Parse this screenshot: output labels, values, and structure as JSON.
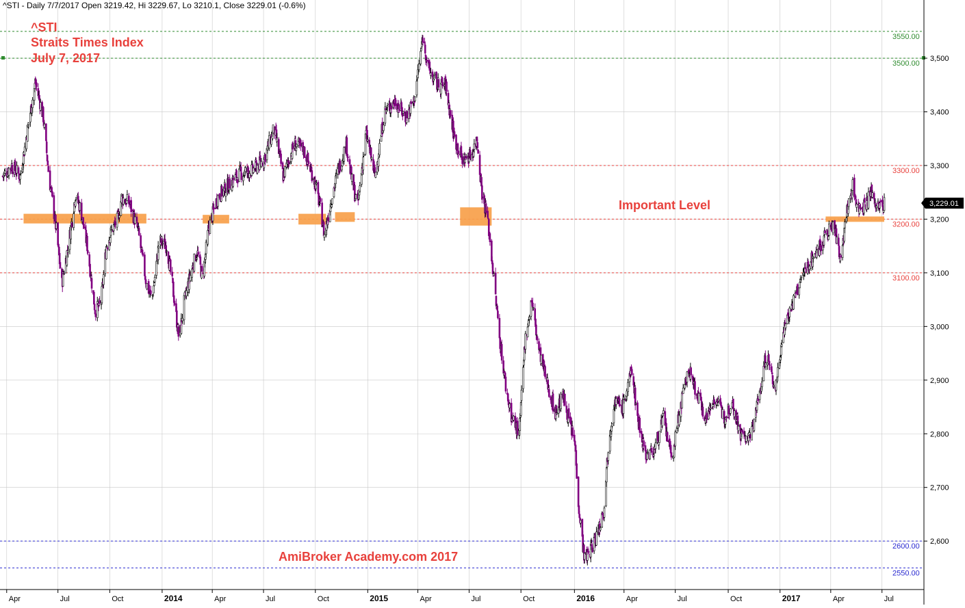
{
  "header": "^STI - Daily 7/7/2017 Open 3219.42, Hi 3229.67, Lo 3210.1, Close 3229.01 (-0.6%)",
  "title_lines": [
    "^STI",
    "Straits Times Index",
    "July 7, 2017"
  ],
  "annotation": "Important Level",
  "watermark": "AmiBroker Academy.com 2017",
  "last_price_label": "3,229.01",
  "colors": {
    "up_candle": "#000000",
    "down_candle": "#800080",
    "zone": "#f7a04a",
    "level_red": "#e8413c",
    "level_green": "#2e8b2e",
    "level_blue": "#2a2ad0",
    "grid": "#c8c8c8",
    "title": "#e8413c"
  },
  "chart_data": {
    "type": "candlestick",
    "y_axis": {
      "min": 2525,
      "max": 3560,
      "ticks": [
        2600,
        2700,
        2800,
        2900,
        3000,
        3100,
        3200,
        3300,
        3400,
        3500
      ],
      "tick_labels": [
        "2,600",
        "2,700",
        "2,800",
        "2,900",
        "3,000",
        "3,100",
        "3,200",
        "3,300",
        "3,400",
        "3,500"
      ]
    },
    "x_axis": {
      "start": "2013-03-25",
      "end": "2017-07-07",
      "ticks": [
        {
          "date": "2013-04-01",
          "label": "Apr",
          "bold": false
        },
        {
          "date": "2013-07-01",
          "label": "Jul",
          "bold": false
        },
        {
          "date": "2013-10-01",
          "label": "Oct",
          "bold": false
        },
        {
          "date": "2014-01-02",
          "label": "2014",
          "bold": true
        },
        {
          "date": "2014-04-01",
          "label": "Apr",
          "bold": false
        },
        {
          "date": "2014-07-01",
          "label": "Jul",
          "bold": false
        },
        {
          "date": "2014-10-01",
          "label": "Oct",
          "bold": false
        },
        {
          "date": "2015-01-02",
          "label": "2015",
          "bold": true
        },
        {
          "date": "2015-04-01",
          "label": "Apr",
          "bold": false
        },
        {
          "date": "2015-07-01",
          "label": "Jul",
          "bold": false
        },
        {
          "date": "2015-10-01",
          "label": "Oct",
          "bold": false
        },
        {
          "date": "2016-01-04",
          "label": "2016",
          "bold": true
        },
        {
          "date": "2016-04-01",
          "label": "Apr",
          "bold": false
        },
        {
          "date": "2016-07-01",
          "label": "Jul",
          "bold": false
        },
        {
          "date": "2016-10-03",
          "label": "Oct",
          "bold": false
        },
        {
          "date": "2017-01-03",
          "label": "2017",
          "bold": true
        },
        {
          "date": "2017-04-03",
          "label": "Apr",
          "bold": false
        },
        {
          "date": "2017-07-03",
          "label": "Jul",
          "bold": false
        }
      ]
    },
    "levels": [
      {
        "value": 3550,
        "label": "3550.00",
        "color": "#2e8b2e"
      },
      {
        "value": 3500,
        "label": "3500.00",
        "color": "#2e8b2e"
      },
      {
        "value": 3300,
        "label": "3300.00",
        "color": "#e8413c"
      },
      {
        "value": 3200,
        "label": "3200.00",
        "color": "#e8413c"
      },
      {
        "value": 3100,
        "label": "3100.00",
        "color": "#e8413c"
      },
      {
        "value": 2600,
        "label": "2600.00",
        "color": "#2a2ad0"
      },
      {
        "value": 2550,
        "label": "2550.00",
        "color": "#2a2ad0"
      }
    ],
    "zones": [
      {
        "start": "2013-05-01",
        "end": "2013-12-05",
        "low": 3192,
        "high": 3210
      },
      {
        "start": "2014-03-15",
        "end": "2014-05-01",
        "low": 3192,
        "high": 3208
      },
      {
        "start": "2014-09-01",
        "end": "2014-10-20",
        "low": 3190,
        "high": 3210
      },
      {
        "start": "2014-11-05",
        "end": "2014-12-10",
        "low": 3195,
        "high": 3213
      },
      {
        "start": "2015-06-15",
        "end": "2015-08-10",
        "low": 3188,
        "high": 3222
      },
      {
        "start": "2017-03-25",
        "end": "2017-07-07",
        "low": 3195,
        "high": 3205
      }
    ],
    "price_path": [
      [
        "2013-03-25",
        3280
      ],
      [
        "2013-04-10",
        3300
      ],
      [
        "2013-04-25",
        3280
      ],
      [
        "2013-05-10",
        3380
      ],
      [
        "2013-05-22",
        3455
      ],
      [
        "2013-06-05",
        3390
      ],
      [
        "2013-06-15",
        3280
      ],
      [
        "2013-06-28",
        3180
      ],
      [
        "2013-07-08",
        3080
      ],
      [
        "2013-07-22",
        3170
      ],
      [
        "2013-08-01",
        3245
      ],
      [
        "2013-08-10",
        3220
      ],
      [
        "2013-08-22",
        3150
      ],
      [
        "2013-09-05",
        3030
      ],
      [
        "2013-09-15",
        3040
      ],
      [
        "2013-09-25",
        3150
      ],
      [
        "2013-10-05",
        3180
      ],
      [
        "2013-10-15",
        3200
      ],
      [
        "2013-10-22",
        3240
      ],
      [
        "2013-11-05",
        3230
      ],
      [
        "2013-11-20",
        3180
      ],
      [
        "2013-12-05",
        3080
      ],
      [
        "2013-12-15",
        3050
      ],
      [
        "2013-12-28",
        3160
      ],
      [
        "2014-01-10",
        3150
      ],
      [
        "2014-01-20",
        3080
      ],
      [
        "2014-02-01",
        2975
      ],
      [
        "2014-02-10",
        3045
      ],
      [
        "2014-02-22",
        3100
      ],
      [
        "2014-03-05",
        3140
      ],
      [
        "2014-03-15",
        3090
      ],
      [
        "2014-03-25",
        3180
      ],
      [
        "2014-04-10",
        3240
      ],
      [
        "2014-05-01",
        3265
      ],
      [
        "2014-05-20",
        3285
      ],
      [
        "2014-06-10",
        3290
      ],
      [
        "2014-07-01",
        3310
      ],
      [
        "2014-07-20",
        3370
      ],
      [
        "2014-08-05",
        3280
      ],
      [
        "2014-08-25",
        3340
      ],
      [
        "2014-09-10",
        3330
      ],
      [
        "2014-09-30",
        3270
      ],
      [
        "2014-10-10",
        3220
      ],
      [
        "2014-10-17",
        3170
      ],
      [
        "2014-10-30",
        3240
      ],
      [
        "2014-11-10",
        3290
      ],
      [
        "2014-11-25",
        3340
      ],
      [
        "2014-12-05",
        3270
      ],
      [
        "2014-12-15",
        3225
      ],
      [
        "2014-12-30",
        3360
      ],
      [
        "2015-01-15",
        3280
      ],
      [
        "2015-02-01",
        3400
      ],
      [
        "2015-02-20",
        3420
      ],
      [
        "2015-03-10",
        3390
      ],
      [
        "2015-03-25",
        3420
      ],
      [
        "2015-04-10",
        3540
      ],
      [
        "2015-04-20",
        3480
      ],
      [
        "2015-05-05",
        3450
      ],
      [
        "2015-05-20",
        3450
      ],
      [
        "2015-06-05",
        3350
      ],
      [
        "2015-06-20",
        3310
      ],
      [
        "2015-07-05",
        3320
      ],
      [
        "2015-07-15",
        3350
      ],
      [
        "2015-07-24",
        3250
      ],
      [
        "2015-08-03",
        3200
      ],
      [
        "2015-08-10",
        3130
      ],
      [
        "2015-08-24",
        2980
      ],
      [
        "2015-09-05",
        2880
      ],
      [
        "2015-09-15",
        2830
      ],
      [
        "2015-09-28",
        2800
      ],
      [
        "2015-10-08",
        2970
      ],
      [
        "2015-10-20",
        3050
      ],
      [
        "2015-11-01",
        2960
      ],
      [
        "2015-11-15",
        2900
      ],
      [
        "2015-12-01",
        2840
      ],
      [
        "2015-12-15",
        2870
      ],
      [
        "2016-01-05",
        2780
      ],
      [
        "2016-01-12",
        2660
      ],
      [
        "2016-01-22",
        2565
      ],
      [
        "2016-02-05",
        2590
      ],
      [
        "2016-02-15",
        2620
      ],
      [
        "2016-02-25",
        2660
      ],
      [
        "2016-03-05",
        2790
      ],
      [
        "2016-03-15",
        2860
      ],
      [
        "2016-03-30",
        2850
      ],
      [
        "2016-04-15",
        2920
      ],
      [
        "2016-04-25",
        2830
      ],
      [
        "2016-05-10",
        2760
      ],
      [
        "2016-05-25",
        2770
      ],
      [
        "2016-06-10",
        2830
      ],
      [
        "2016-06-25",
        2750
      ],
      [
        "2016-07-10",
        2850
      ],
      [
        "2016-07-25",
        2920
      ],
      [
        "2016-08-10",
        2870
      ],
      [
        "2016-08-25",
        2830
      ],
      [
        "2016-09-10",
        2870
      ],
      [
        "2016-09-25",
        2830
      ],
      [
        "2016-10-10",
        2860
      ],
      [
        "2016-10-25",
        2800
      ],
      [
        "2016-11-10",
        2790
      ],
      [
        "2016-11-25",
        2860
      ],
      [
        "2016-12-10",
        2950
      ],
      [
        "2016-12-25",
        2880
      ],
      [
        "2017-01-10",
        3000
      ],
      [
        "2017-01-25",
        3040
      ],
      [
        "2017-02-10",
        3090
      ],
      [
        "2017-02-25",
        3120
      ],
      [
        "2017-03-10",
        3140
      ],
      [
        "2017-03-25",
        3170
      ],
      [
        "2017-04-08",
        3190
      ],
      [
        "2017-04-20",
        3130
      ],
      [
        "2017-05-01",
        3210
      ],
      [
        "2017-05-12",
        3260
      ],
      [
        "2017-05-22",
        3220
      ],
      [
        "2017-06-05",
        3230
      ],
      [
        "2017-06-15",
        3250
      ],
      [
        "2017-06-25",
        3220
      ],
      [
        "2017-07-07",
        3229
      ]
    ]
  }
}
